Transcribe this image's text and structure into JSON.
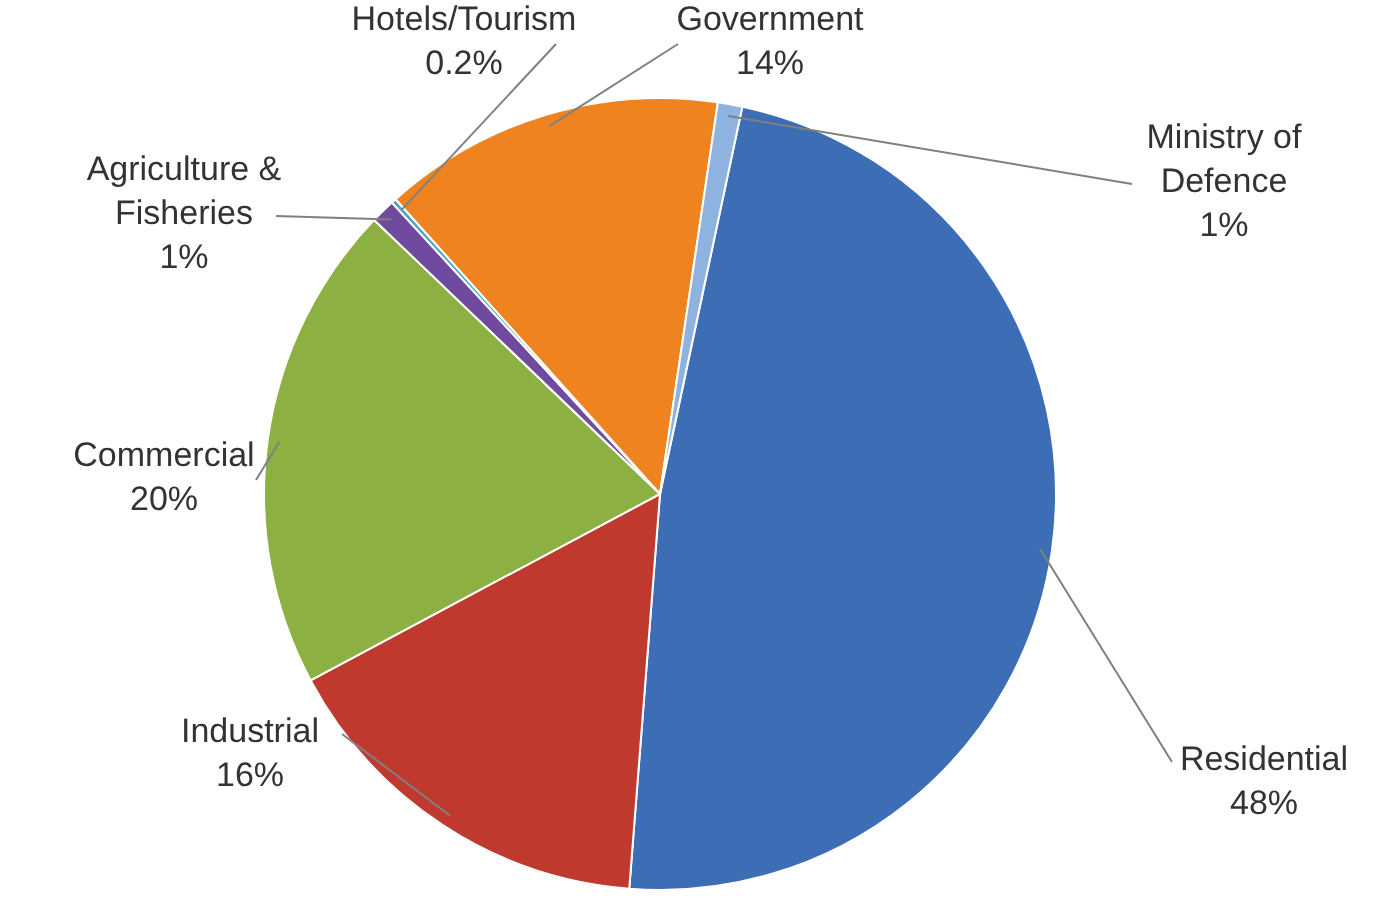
{
  "chart_data": {
    "type": "pie",
    "categories": [
      "Residential",
      "Industrial",
      "Commercial",
      "Agriculture & Fisheries",
      "Hotels/Tourism",
      "Government",
      "Ministry of Defence"
    ],
    "values": [
      48,
      16,
      20,
      1,
      0.2,
      14,
      1
    ],
    "value_labels": [
      "48%",
      "16%",
      "20%",
      "1%",
      "0.2%",
      "14%",
      "1%"
    ],
    "colors": [
      "#3d6db4",
      "#c0392f",
      "#8db043",
      "#6f4a9e",
      "#4aa8c4",
      "#ee8320",
      "#8fb3e0"
    ]
  }
}
